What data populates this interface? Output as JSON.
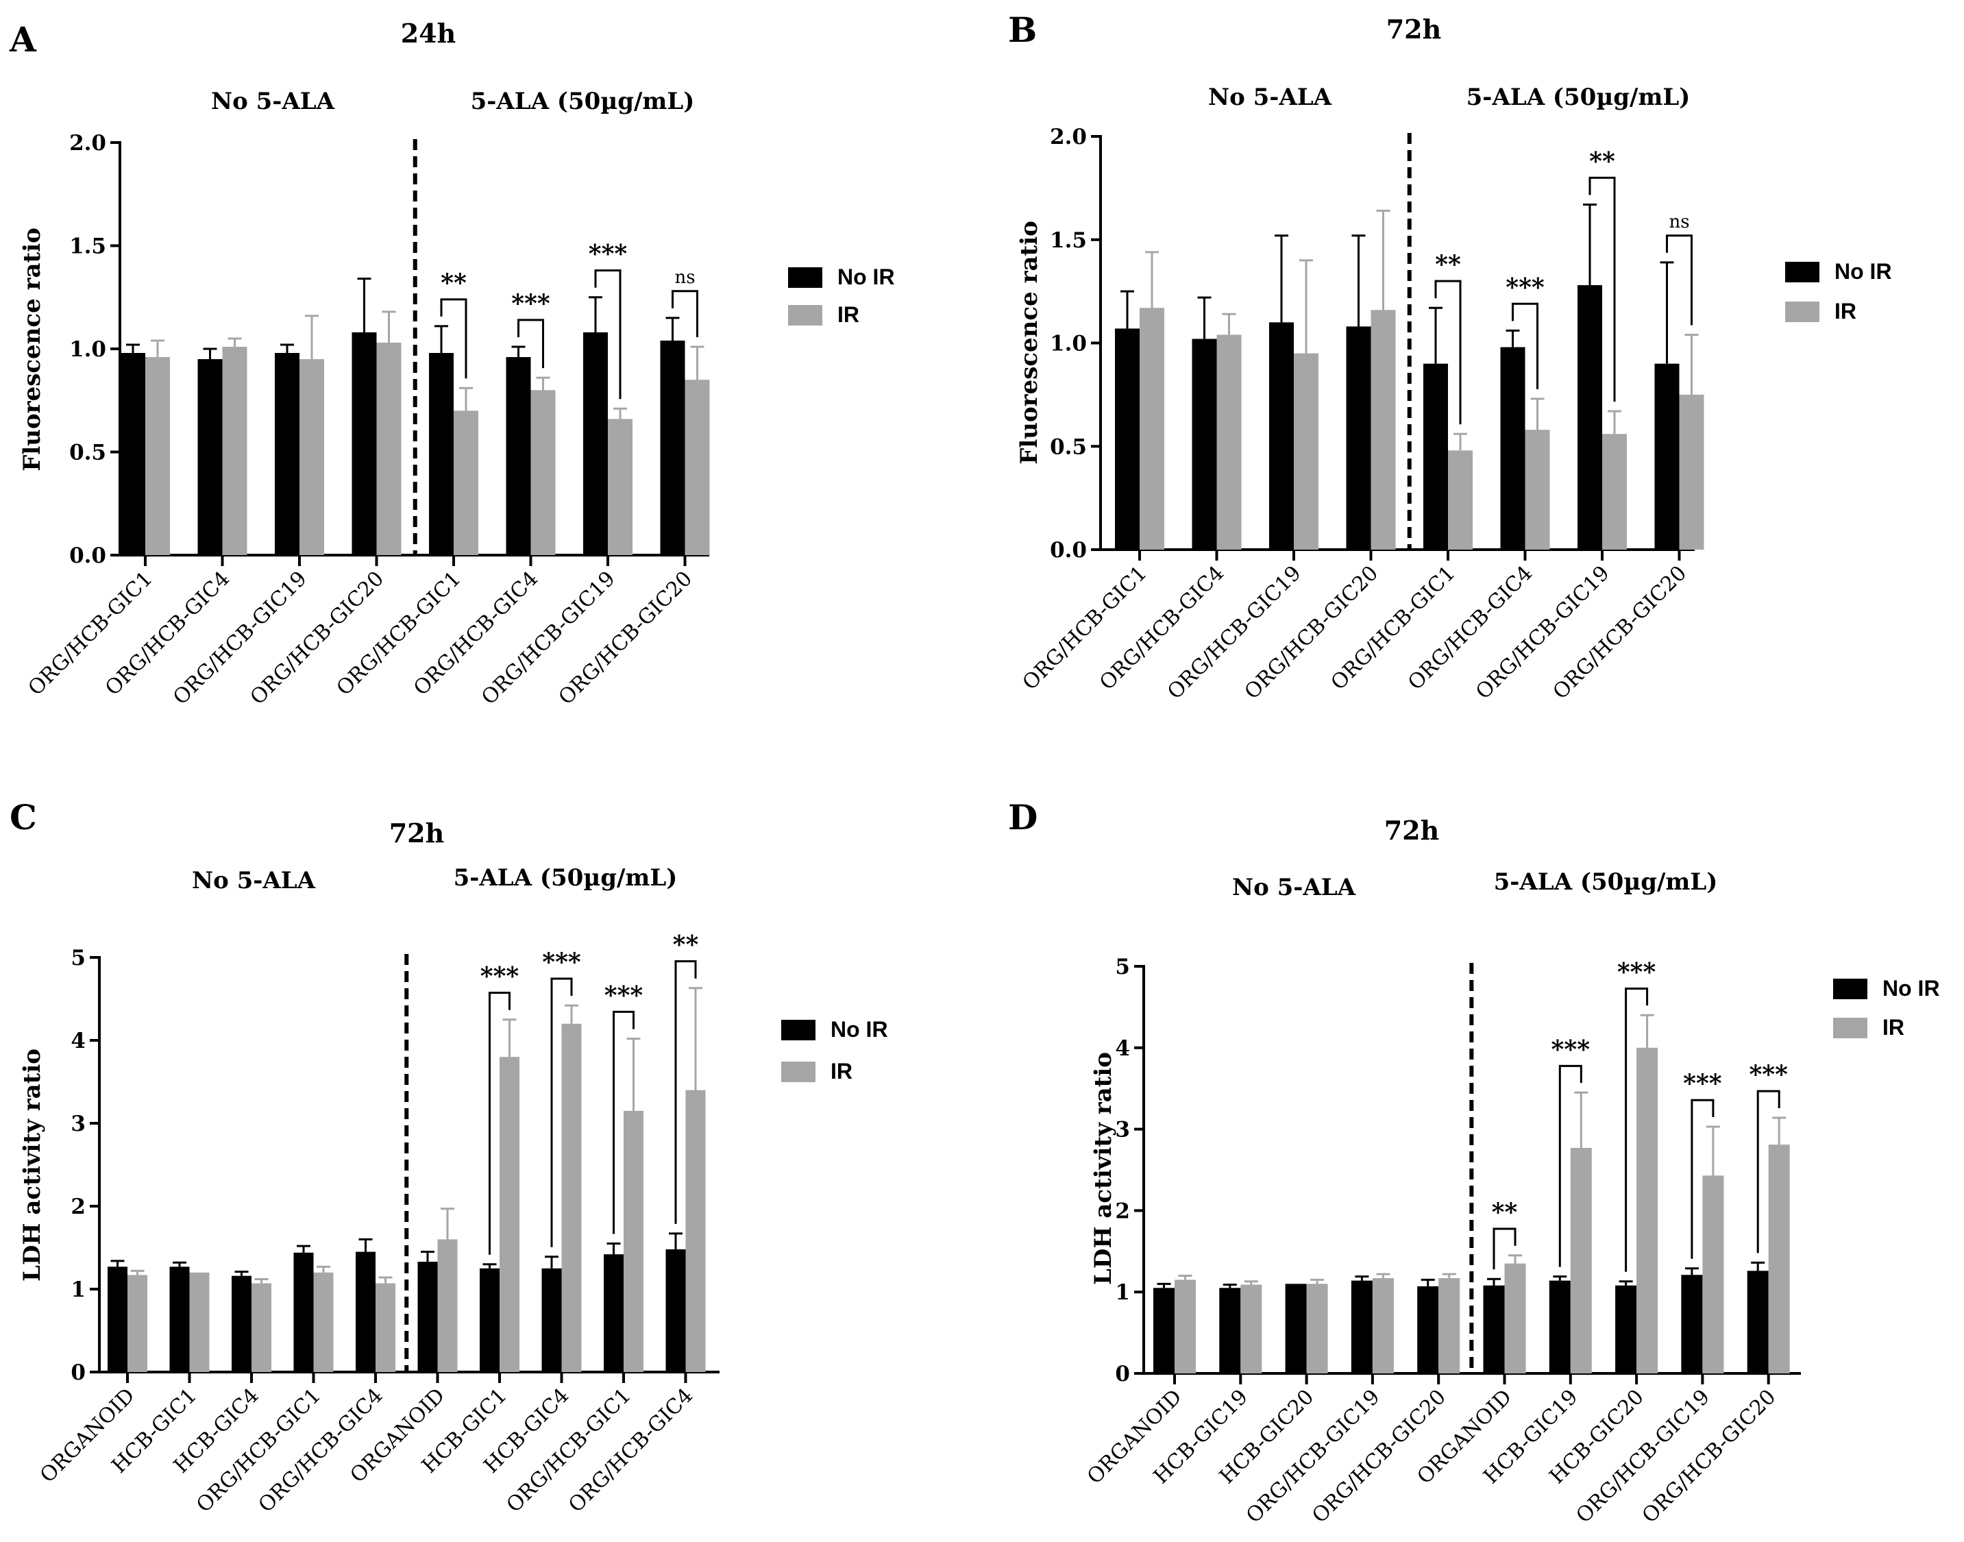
{
  "legend": {
    "no_ir": "No IR",
    "ir": "IR"
  },
  "colors": {
    "no_ir": "#000000",
    "ir": "#a6a6a6"
  },
  "chart_data": [
    {
      "type": "bar",
      "panel": "A",
      "title": "24h",
      "group_titles": [
        "No 5-ALA",
        "5-ALA (50µg/mL)"
      ],
      "ylabel": "Fluorescence ratio",
      "ylim": [
        0,
        2
      ],
      "yticks": [
        "0.0",
        "0.5",
        "1.0",
        "1.5",
        "2.0"
      ],
      "ytick_values": [
        0,
        0.5,
        1,
        1.5,
        2
      ],
      "categories": [
        "ORG/HCB-GIC1",
        "ORG/HCB-GIC4",
        "ORG/HCB-GIC19",
        "ORG/HCB-GIC20",
        "ORG/HCB-GIC1",
        "ORG/HCB-GIC4",
        "ORG/HCB-GIC19",
        "ORG/HCB-GIC20"
      ],
      "divider_after": 4,
      "series": [
        {
          "name": "No IR",
          "values": [
            0.98,
            0.95,
            0.98,
            1.08,
            0.98,
            0.96,
            1.08,
            1.04
          ],
          "errors": [
            0.04,
            0.05,
            0.04,
            0.26,
            0.13,
            0.05,
            0.17,
            0.11
          ]
        },
        {
          "name": "IR",
          "values": [
            0.96,
            1.01,
            0.95,
            1.03,
            0.7,
            0.8,
            0.66,
            0.85
          ],
          "errors": [
            0.08,
            0.04,
            0.21,
            0.15,
            0.11,
            0.06,
            0.05,
            0.16
          ]
        }
      ],
      "annotations": [
        {
          "group": 4,
          "text": "**"
        },
        {
          "group": 5,
          "text": "***"
        },
        {
          "group": 6,
          "text": "***"
        },
        {
          "group": 7,
          "text": "ns"
        }
      ],
      "legend_position": "right"
    },
    {
      "type": "bar",
      "panel": "B",
      "title": "72h",
      "group_titles": [
        "No 5-ALA",
        "5-ALA (50µg/mL)"
      ],
      "ylabel": "Fluorescence ratio",
      "ylim": [
        0,
        2
      ],
      "yticks": [
        "0.0",
        "0.5",
        "1.0",
        "1.5",
        "2.0"
      ],
      "ytick_values": [
        0,
        0.5,
        1,
        1.5,
        2
      ],
      "categories": [
        "ORG/HCB-GIC1",
        "ORG/HCB-GIC4",
        "ORG/HCB-GIC19",
        "ORG/HCB-GIC20",
        "ORG/HCB-GIC1",
        "ORG/HCB-GIC4",
        "ORG/HCB-GIC19",
        "ORG/HCB-GIC20"
      ],
      "divider_after": 4,
      "series": [
        {
          "name": "No IR",
          "values": [
            1.07,
            1.02,
            1.1,
            1.08,
            0.9,
            0.98,
            1.28,
            0.9
          ],
          "errors": [
            0.18,
            0.2,
            0.42,
            0.44,
            0.27,
            0.08,
            0.39,
            0.49
          ]
        },
        {
          "name": "IR",
          "values": [
            1.17,
            1.04,
            0.95,
            1.16,
            0.48,
            0.58,
            0.56,
            0.75
          ],
          "errors": [
            0.27,
            0.1,
            0.45,
            0.48,
            0.08,
            0.15,
            0.11,
            0.29
          ]
        }
      ],
      "annotations": [
        {
          "group": 4,
          "text": "**"
        },
        {
          "group": 5,
          "text": "***"
        },
        {
          "group": 6,
          "text": "**"
        },
        {
          "group": 7,
          "text": "ns"
        }
      ],
      "legend_position": "right"
    },
    {
      "type": "bar",
      "panel": "C",
      "title": "72h",
      "group_titles": [
        "No 5-ALA",
        "5-ALA (50µg/mL)"
      ],
      "ylabel": "LDH activity ratio",
      "ylim": [
        0,
        5
      ],
      "yticks": [
        "0",
        "1",
        "2",
        "3",
        "4",
        "5"
      ],
      "ytick_values": [
        0,
        1,
        2,
        3,
        4,
        5
      ],
      "categories": [
        "ORGANOID",
        "HCB-GIC1",
        "HCB-GIC4",
        "ORG/HCB-GIC1",
        "ORG/HCB-GIC4",
        "ORGANOID",
        "HCB-GIC1",
        "HCB-GIC4",
        "ORG/HCB-GIC1",
        "ORG/HCB-GIC4"
      ],
      "divider_after": 5,
      "series": [
        {
          "name": "No IR",
          "values": [
            1.27,
            1.27,
            1.16,
            1.44,
            1.45,
            1.33,
            1.25,
            1.25,
            1.42,
            1.48
          ],
          "errors": [
            0.07,
            0.05,
            0.05,
            0.08,
            0.15,
            0.12,
            0.05,
            0.14,
            0.13,
            0.19
          ]
        },
        {
          "name": "IR",
          "values": [
            1.17,
            1.2,
            1.07,
            1.2,
            1.07,
            1.6,
            3.8,
            4.2,
            3.15,
            3.4
          ],
          "errors": [
            0.05,
            0.0,
            0.05,
            0.07,
            0.07,
            0.37,
            0.45,
            0.22,
            0.87,
            1.23
          ]
        }
      ],
      "annotations": [
        {
          "group": 6,
          "text": "***"
        },
        {
          "group": 7,
          "text": "***"
        },
        {
          "group": 8,
          "text": "***"
        },
        {
          "group": 9,
          "text": "**"
        }
      ],
      "legend_position": "right"
    },
    {
      "type": "bar",
      "panel": "D",
      "title": "72h",
      "group_titles": [
        "No 5-ALA",
        "5-ALA (50µg/mL)"
      ],
      "ylabel": "LDH activity ratio",
      "ylim": [
        0,
        5
      ],
      "yticks": [
        "0",
        "1",
        "2",
        "3",
        "4",
        "5"
      ],
      "ytick_values": [
        0,
        1,
        2,
        3,
        4,
        5
      ],
      "categories": [
        "ORGANOID",
        "HCB-GIC19",
        "HCB-GIC20",
        "ORG/HCB-GIC19",
        "ORG/HCB-GIC20",
        "ORGANOID",
        "HCB-GIC19",
        "HCB-GIC20",
        "ORG/HCB-GIC19",
        "ORG/HCB-GIC20"
      ],
      "divider_after": 5,
      "series": [
        {
          "name": "No IR",
          "values": [
            1.05,
            1.05,
            1.1,
            1.14,
            1.07,
            1.08,
            1.14,
            1.08,
            1.21,
            1.26
          ],
          "errors": [
            0.05,
            0.04,
            0.0,
            0.05,
            0.08,
            0.08,
            0.05,
            0.05,
            0.08,
            0.1
          ]
        },
        {
          "name": "IR",
          "values": [
            1.15,
            1.09,
            1.1,
            1.17,
            1.17,
            1.35,
            2.77,
            4.0,
            2.43,
            2.81
          ],
          "errors": [
            0.05,
            0.04,
            0.05,
            0.05,
            0.05,
            0.1,
            0.68,
            0.4,
            0.6,
            0.33
          ]
        }
      ],
      "annotations": [
        {
          "group": 5,
          "text": "**"
        },
        {
          "group": 6,
          "text": "***"
        },
        {
          "group": 7,
          "text": "***"
        },
        {
          "group": 8,
          "text": "***"
        },
        {
          "group": 9,
          "text": "***"
        }
      ],
      "legend_position": "right"
    }
  ]
}
